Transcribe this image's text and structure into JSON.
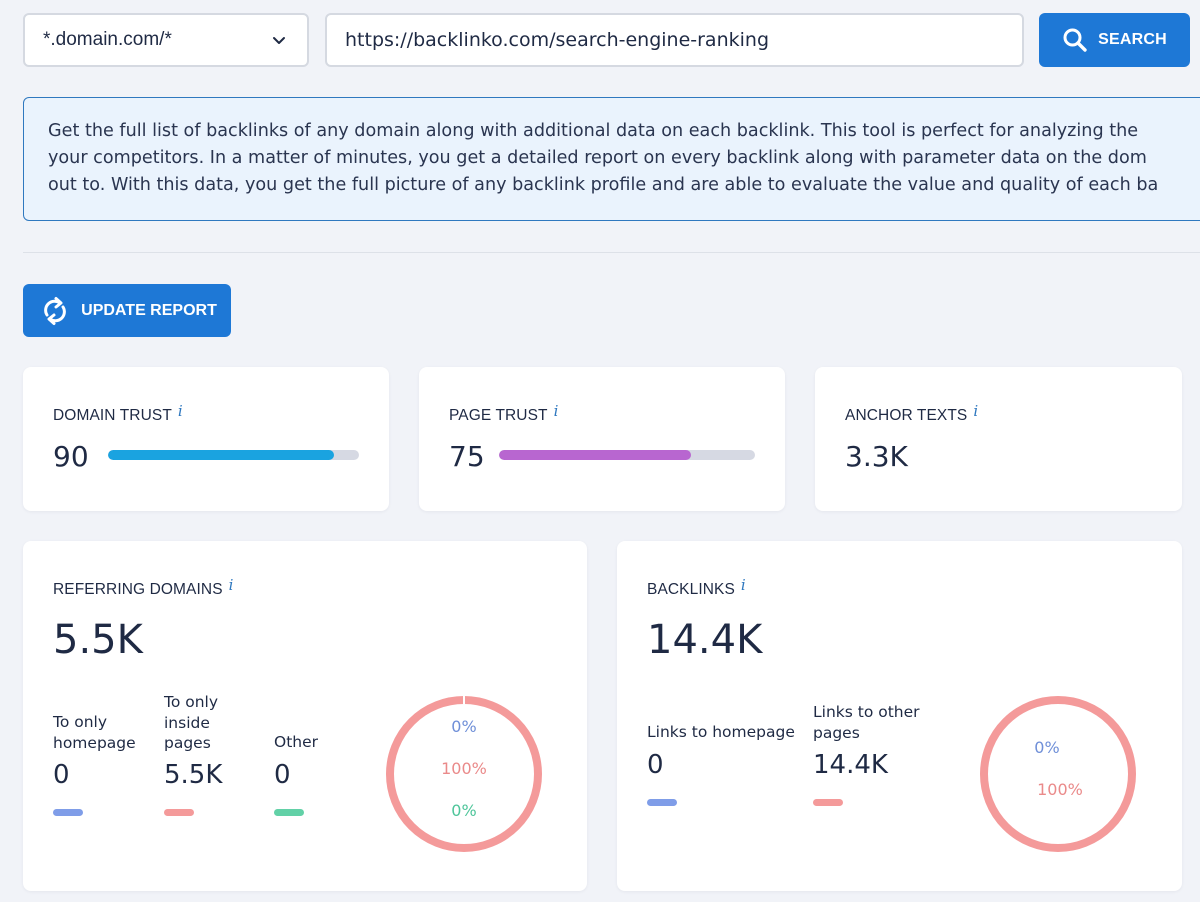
{
  "search": {
    "scope_value": "*.domain.com/*",
    "url_value": "https://backlinko.com/search-engine-ranking",
    "button_label": "SEARCH"
  },
  "info": {
    "line1": "Get the full list of backlinks of any domain along with additional data on each backlink. This tool is perfect for analyzing the",
    "line2": "your competitors. In a matter of minutes, you get a detailed report on every backlink along with parameter data on the dom",
    "line3": "out to. With this data, you get the full picture of any backlink profile and are able to evaluate the value and quality of each ba"
  },
  "update": {
    "label": "UPDATE REPORT"
  },
  "info_marker": "i",
  "domain_trust": {
    "title": "DOMAIN TRUST",
    "value": "90",
    "percent": 90,
    "color": "#1aa3e0"
  },
  "page_trust": {
    "title": "PAGE TRUST",
    "value": "75",
    "percent": 75,
    "color": "#b866d0"
  },
  "anchor_texts": {
    "title": "ANCHOR TEXTS",
    "value": "3.3K"
  },
  "referring": {
    "title": "REFERRING DOMAINS",
    "value": "5.5K",
    "items": [
      {
        "label": "To only homepage",
        "value": "0",
        "color": "#7f9de8"
      },
      {
        "label": "To only inside pages",
        "value": "5.5K",
        "color": "#f49a9a"
      },
      {
        "label": "Other",
        "value": "0",
        "color": "#62d1a7"
      }
    ],
    "ring": {
      "top": "0%",
      "mid": "100%",
      "bot": "0%"
    }
  },
  "backlinks": {
    "title": "BACKLINKS",
    "value": "14.4K",
    "items": [
      {
        "label": "Links to homepage",
        "value": "0",
        "color": "#7f9de8"
      },
      {
        "label": "Links to other pages",
        "value": "14.4K",
        "color": "#f49a9a"
      }
    ],
    "ring": {
      "top": "0%",
      "mid": "100%"
    }
  },
  "colors": {
    "ring": "#f49a9a",
    "blue_text": "#6f8fd8",
    "red_text": "#ea8a8a",
    "green_text": "#4ec59a"
  }
}
